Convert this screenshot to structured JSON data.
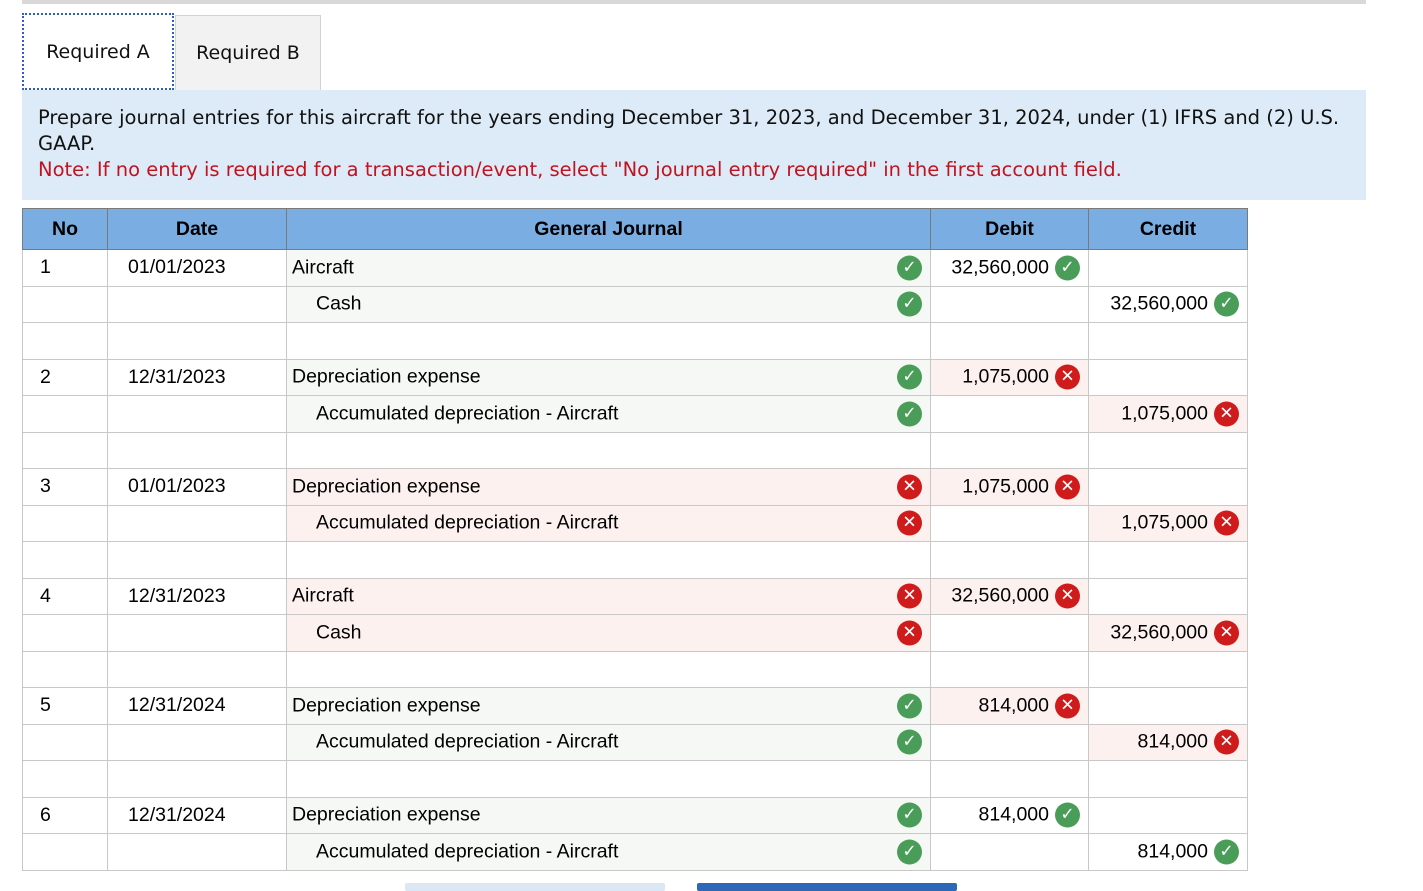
{
  "tabs": {
    "a": "Required A",
    "b": "Required B"
  },
  "instructions": {
    "question": "Prepare journal entries for this aircraft for the years ending December 31, 2023, and December 31, 2024, under (1) IFRS and (2) U.S. GAAP.",
    "note": "Note: If no entry is required for a transaction/event, select \"No journal entry required\" in the first account field."
  },
  "table": {
    "headers": {
      "no": "No",
      "date": "Date",
      "journal": "General Journal",
      "debit": "Debit",
      "credit": "Credit"
    },
    "entries": [
      {
        "no": "1",
        "date": "01/01/2023",
        "debit_account": "Aircraft",
        "debit_account_status": "correct",
        "debit": "32,560,000",
        "debit_status": "correct",
        "credit_account": "Cash",
        "credit_account_status": "correct",
        "credit": "32,560,000",
        "credit_status": "correct"
      },
      {
        "no": "2",
        "date": "12/31/2023",
        "debit_account": "Depreciation expense",
        "debit_account_status": "correct",
        "debit": "1,075,000",
        "debit_status": "incorrect",
        "credit_account": "Accumulated depreciation - Aircraft",
        "credit_account_status": "correct",
        "credit": "1,075,000",
        "credit_status": "incorrect"
      },
      {
        "no": "3",
        "date": "01/01/2023",
        "debit_account": "Depreciation expense",
        "debit_account_status": "incorrect",
        "debit": "1,075,000",
        "debit_status": "incorrect",
        "credit_account": "Accumulated depreciation - Aircraft",
        "credit_account_status": "incorrect",
        "credit": "1,075,000",
        "credit_status": "incorrect"
      },
      {
        "no": "4",
        "date": "12/31/2023",
        "debit_account": "Aircraft",
        "debit_account_status": "incorrect",
        "debit": "32,560,000",
        "debit_status": "incorrect",
        "credit_account": "Cash",
        "credit_account_status": "incorrect",
        "credit": "32,560,000",
        "credit_status": "incorrect"
      },
      {
        "no": "5",
        "date": "12/31/2024",
        "debit_account": "Depreciation expense",
        "debit_account_status": "correct",
        "debit": "814,000",
        "debit_status": "incorrect",
        "credit_account": "Accumulated depreciation - Aircraft",
        "credit_account_status": "correct",
        "credit": "814,000",
        "credit_status": "incorrect"
      },
      {
        "no": "6",
        "date": "12/31/2024",
        "debit_account": "Depreciation expense",
        "debit_account_status": "correct",
        "debit": "814,000",
        "debit_status": "correct",
        "credit_account": "Accumulated depreciation - Aircraft",
        "credit_account_status": "correct",
        "credit": "814,000",
        "credit_status": "correct"
      }
    ]
  },
  "colors": {
    "header_bg": "#7aaee3",
    "instruction_bg": "#dcebf7",
    "note_red": "#c1121f",
    "correct_green": "#4a9d58",
    "incorrect_red": "#cf1b1b"
  },
  "icons": {
    "correct": "check-circle-icon",
    "incorrect": "x-circle-icon"
  }
}
